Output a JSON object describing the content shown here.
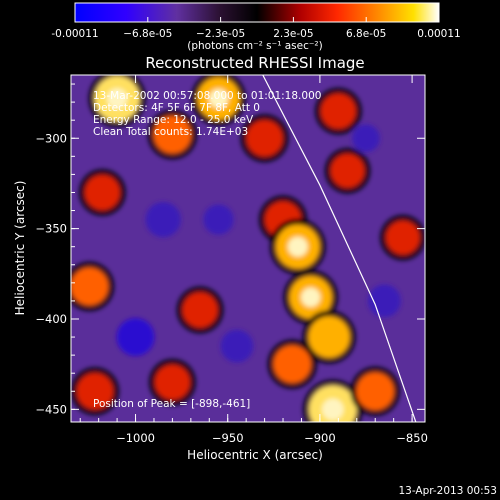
{
  "chart_data": {
    "type": "heatmap",
    "title": "Reconstructed RHESSI Image",
    "xlabel": "Heliocentric X (arcsec)",
    "ylabel": "Heliocentric Y (arcsec)",
    "xlim": [
      -1035,
      -843
    ],
    "ylim": [
      -457,
      -265
    ],
    "x_ticks": [
      -1000,
      -950,
      -900,
      -850
    ],
    "x_tick_labels": [
      "−1000",
      "−950",
      "−900",
      "−850"
    ],
    "y_ticks": [
      -300,
      -350,
      -400,
      -450
    ],
    "y_tick_labels": [
      "−300",
      "−350",
      "−400",
      "−450"
    ],
    "colorbar": {
      "range": [
        -0.00011,
        0.00011
      ],
      "tick_labels": [
        "-0.00011",
        "−6.8e-05",
        "−2.3e-05",
        "2.3e-05",
        "6.8e-05",
        "0.00011"
      ],
      "unit_label": "(photons cm⁻² s⁻¹ asec⁻²)",
      "colors": [
        "#0000ff",
        "#5a2a9c",
        "#000000",
        "#b00000",
        "#ff3000",
        "#ff9000",
        "#ffd000",
        "#ffffff"
      ]
    },
    "annotations": [
      "13-Mar-2002 00:57:08.000 to 01:01:18.000",
      "Detectors: 4F 5F 6F 7F 8F, Att 0",
      "Energy Range: 12.0 - 25.0 keV",
      "Clean     Total counts: 1.74E+03"
    ],
    "peak_text": "Position of Peak = [-898,-461]",
    "peak": [
      -898,
      -461
    ],
    "limb": [
      [
        -931,
        -265
      ],
      [
        -900,
        -326
      ],
      [
        -870,
        -392
      ],
      [
        -848,
        -457
      ]
    ],
    "hot_spots": [
      {
        "x": -1010,
        "y": -278,
        "v": 0.0001
      },
      {
        "x": -980,
        "y": -298,
        "v": 7e-05
      },
      {
        "x": -955,
        "y": -278,
        "v": 9e-05
      },
      {
        "x": -930,
        "y": -300,
        "v": 6.5e-05
      },
      {
        "x": -890,
        "y": -285,
        "v": 6e-05
      },
      {
        "x": -885,
        "y": -318,
        "v": 5.5e-05
      },
      {
        "x": -920,
        "y": -345,
        "v": 6.5e-05
      },
      {
        "x": -912,
        "y": -360,
        "v": 9.5e-05
      },
      {
        "x": -905,
        "y": -388,
        "v": 9e-05
      },
      {
        "x": -895,
        "y": -410,
        "v": 8.5e-05
      },
      {
        "x": -915,
        "y": -425,
        "v": 7e-05
      },
      {
        "x": -893,
        "y": -450,
        "v": 0.00011
      },
      {
        "x": -1025,
        "y": -382,
        "v": 7e-05
      },
      {
        "x": -1018,
        "y": -330,
        "v": 6e-05
      },
      {
        "x": -965,
        "y": -395,
        "v": 6e-05
      },
      {
        "x": -980,
        "y": -435,
        "v": 6e-05
      },
      {
        "x": -1022,
        "y": -440,
        "v": 6.5e-05
      },
      {
        "x": -870,
        "y": -440,
        "v": 7e-05
      },
      {
        "x": -855,
        "y": -355,
        "v": 5.5e-05
      },
      {
        "x": -985,
        "y": -345,
        "v": -6e-05
      },
      {
        "x": -1000,
        "y": -410,
        "v": -7e-05
      },
      {
        "x": -945,
        "y": -415,
        "v": -5e-05
      },
      {
        "x": -955,
        "y": -345,
        "v": -4e-05
      },
      {
        "x": -865,
        "y": -390,
        "v": -5e-05
      },
      {
        "x": -875,
        "y": -300,
        "v": -3e-05
      }
    ]
  },
  "footer": {
    "timestamp": "13-Apr-2013 00:53"
  }
}
